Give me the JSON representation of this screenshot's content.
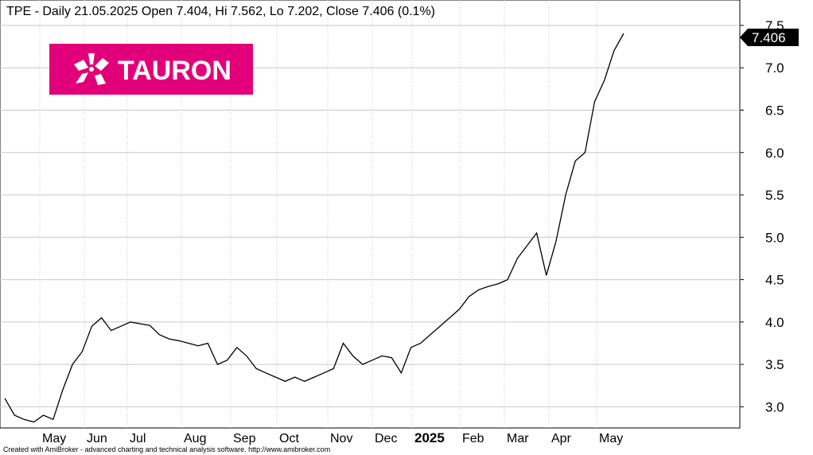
{
  "title": "TPE - Daily 21.05.2025 Open 7.404, Hi 7.562, Lo 7.202, Close 7.406 (0.1%)",
  "footer": "Created with AmiBroker - advanced charting and technical analysis software. http://www.amibroker.com",
  "logo": {
    "text": "TAURON",
    "color": "#E2007A"
  },
  "last_price_label": "7.406",
  "chart_data": {
    "type": "line",
    "title": "TPE - Daily 21.05.2025 Open 7.404, Hi 7.562, Lo 7.202, Close 7.406 (0.1%)",
    "xlabel": "",
    "ylabel": "",
    "ylim": [
      2.75,
      7.8
    ],
    "grid": true,
    "y_ticks": [
      "3.0",
      "3.5",
      "4.0",
      "4.5",
      "5.0",
      "5.5",
      "6.0",
      "6.5",
      "7.0",
      "7.5"
    ],
    "x_ticks": [
      "May",
      "Jun",
      "Jul",
      "Aug",
      "Sep",
      "Oct",
      "Nov",
      "Dec",
      "2025",
      "Feb",
      "Mar",
      "Apr",
      "May"
    ],
    "series": [
      {
        "values": [
          3.1,
          2.9,
          2.85,
          2.82,
          2.9,
          2.85,
          3.2,
          3.5,
          3.65,
          3.95,
          4.05,
          3.9,
          3.95,
          4.0,
          3.98,
          3.96,
          3.85,
          3.8,
          3.78,
          3.75,
          3.72,
          3.75,
          3.5,
          3.55,
          3.7,
          3.6,
          3.45,
          3.4,
          3.35,
          3.3,
          3.35,
          3.3,
          3.35,
          3.4,
          3.45,
          3.75,
          3.6,
          3.5,
          3.55,
          3.6,
          3.58,
          3.4,
          3.7,
          3.75,
          3.85,
          3.95,
          4.05,
          4.15,
          4.3,
          4.38,
          4.42,
          4.45,
          4.5,
          4.75,
          4.9,
          5.05,
          4.55,
          4.95,
          5.5,
          5.9,
          6.0,
          6.6,
          6.85,
          7.2,
          7.406
        ]
      }
    ]
  }
}
